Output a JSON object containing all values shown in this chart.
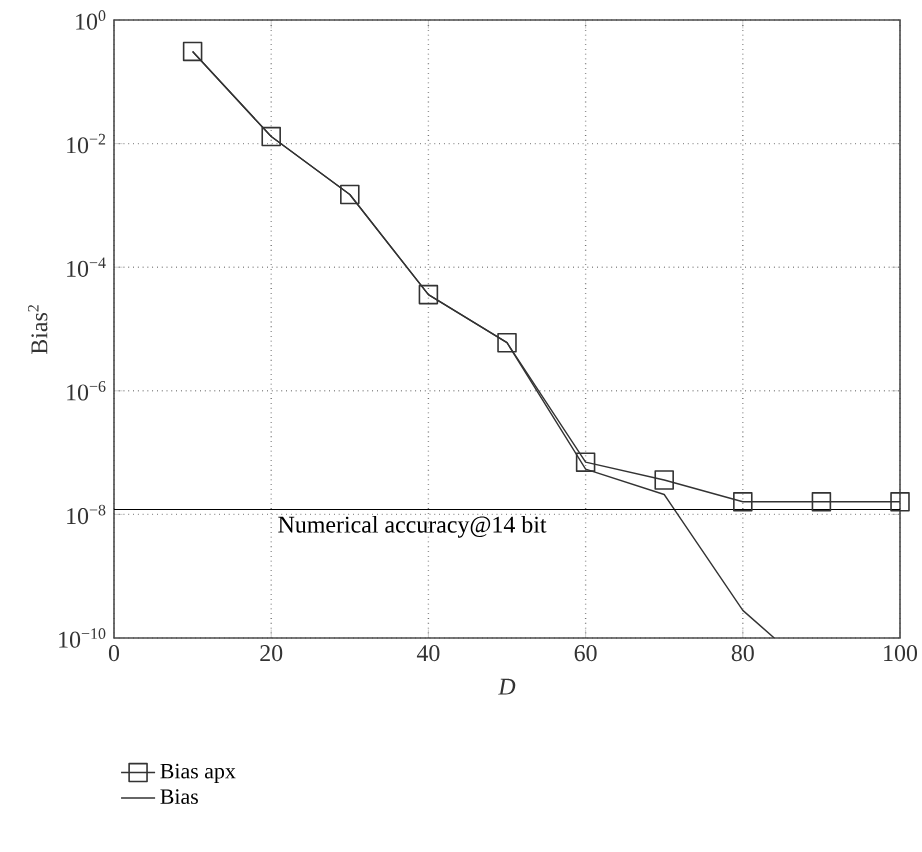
{
  "chart_data": {
    "type": "line",
    "xlabel": "D",
    "ylabel": "Bias$^{2}$",
    "log": "y",
    "grid": true,
    "legend": "bottom left",
    "line_style": "solid",
    "xlim": [
      0,
      100
    ],
    "xticks": [
      0,
      20,
      40,
      60,
      80,
      100
    ],
    "ylim": [
      1e-10,
      1
    ],
    "yticks": [
      {
        "value": 1e-10,
        "label": "10$^{−10}$"
      },
      {
        "value": 1e-08,
        "label": "10$^{−8}$"
      },
      {
        "value": 1e-06,
        "label": "10$^{−6}$"
      },
      {
        "value": 0.0001,
        "label": "10$^{−4}$"
      },
      {
        "value": 0.01,
        "label": "10$^{−2}$"
      },
      {
        "value": 1,
        "label": "10$^{0}$"
      }
    ],
    "series": [
      {
        "name": "Bias apx",
        "color": "#333333",
        "marker": "square",
        "x": [
          10,
          20,
          30,
          40,
          50,
          60,
          70,
          80,
          90,
          100
        ],
        "values": [
          0.31,
          0.013,
          0.0015,
          3.6e-05,
          6e-06,
          7e-08,
          3.6e-08,
          1.6e-08,
          1.6e-08,
          1.6e-08
        ]
      },
      {
        "name": "Bias",
        "color": "#333333",
        "marker": "none",
        "x": [
          10,
          20,
          30,
          40,
          50,
          60,
          70,
          80,
          84
        ],
        "values": [
          0.31,
          0.013,
          0.0015,
          3.6e-05,
          6e-06,
          5.4e-08,
          2.1e-08,
          2.8e-10,
          1e-10
        ]
      }
    ],
    "ref_lines": [
      {
        "axis": "y",
        "value": 1.2e-08,
        "label": "Numerical accuracy@14 bit",
        "color": "#000000"
      }
    ]
  }
}
